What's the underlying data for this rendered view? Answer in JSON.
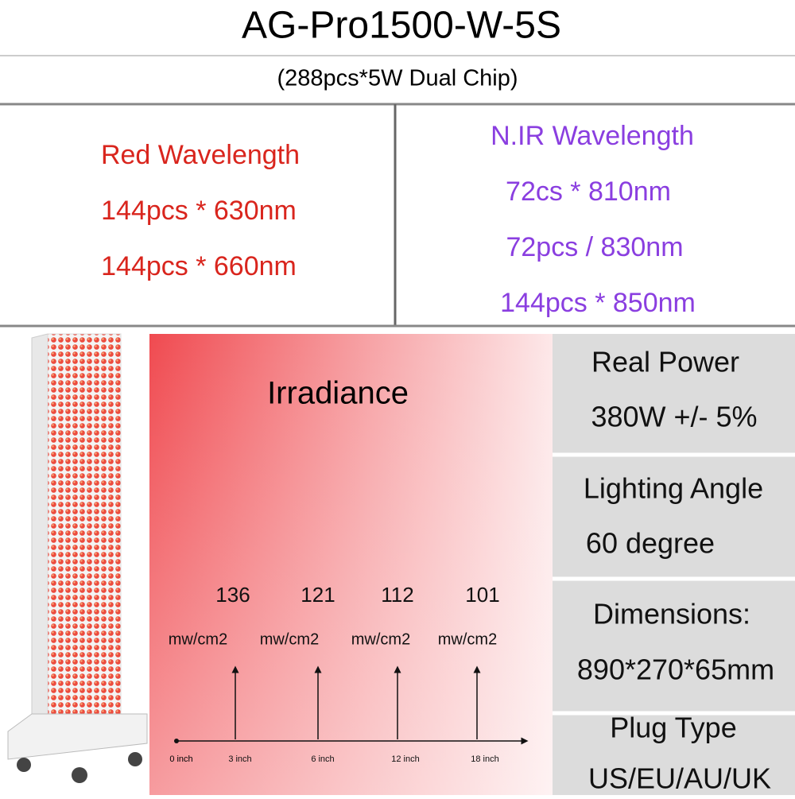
{
  "header": {
    "title": "AG-Pro1500-W-5S",
    "subtitle": "(288pcs*5W Dual Chip)"
  },
  "red": {
    "heading": "Red Wavelength",
    "lines": [
      "144pcs * 630nm",
      "144pcs * 660nm"
    ]
  },
  "nir": {
    "heading": "N.IR Wavelength",
    "lines": [
      "72cs * 810nm",
      "72pcs / 830nm",
      "144pcs * 850nm"
    ]
  },
  "irradiance": {
    "title": "Irradiance",
    "points": [
      {
        "value": 136,
        "unit": "mw/cm2",
        "distance": "3 inch"
      },
      {
        "value": 121,
        "unit": "mw/cm2",
        "distance": "6 inch"
      },
      {
        "value": 112,
        "unit": "mw/cm2",
        "distance": "12 inch"
      },
      {
        "value": 101,
        "unit": "mw/cm2",
        "distance": "18 inch"
      }
    ],
    "origin": "0 inch"
  },
  "specs": [
    {
      "label": "Real Power",
      "value": "380W +/- 5%"
    },
    {
      "label": "Lighting Angle",
      "value": "60 degree"
    },
    {
      "label": "Dimensions:",
      "value": "890*270*65mm"
    },
    {
      "label": "Plug Type",
      "value": "US/EU/AU/UK"
    }
  ]
}
